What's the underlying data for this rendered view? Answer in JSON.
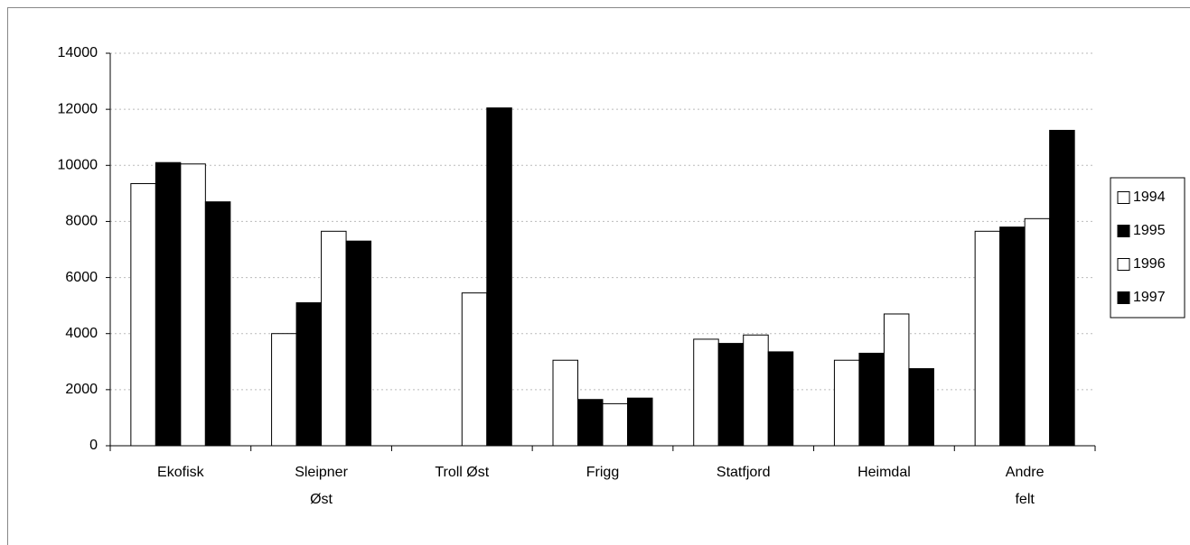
{
  "chart_data": {
    "type": "bar",
    "categories": [
      "Ekofisk",
      "Sleipner\nØst",
      "Troll Øst",
      "Frigg",
      "Statfjord",
      "Heimdal",
      "Andre\nfelt"
    ],
    "series": [
      {
        "name": "1994",
        "color": "#ffffff",
        "values": [
          9350,
          4000,
          0,
          3050,
          3800,
          3050,
          7650
        ]
      },
      {
        "name": "1995",
        "color": "#000000",
        "values": [
          10100,
          5100,
          0,
          1650,
          3650,
          3300,
          7800
        ]
      },
      {
        "name": "1996",
        "color": "#ffffff",
        "values": [
          10050,
          7650,
          5450,
          1500,
          3950,
          4700,
          8100
        ]
      },
      {
        "name": "1997",
        "color": "#000000",
        "values": [
          8700,
          7300,
          12050,
          1700,
          3350,
          2750,
          11250
        ]
      }
    ],
    "ylim": [
      0,
      14000
    ],
    "yticks": [
      0,
      2000,
      4000,
      6000,
      8000,
      10000,
      12000,
      14000
    ],
    "grid": true,
    "legend": "right"
  }
}
